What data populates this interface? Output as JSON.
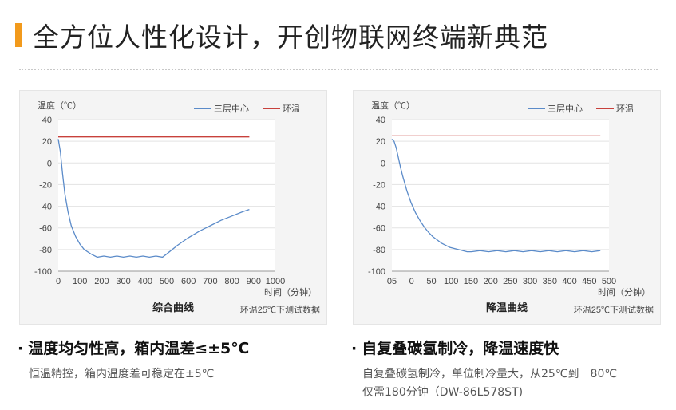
{
  "header": {
    "title": "全方位人性化设计，开创物联网终端新典范"
  },
  "chart_data": [
    {
      "type": "line",
      "title": "综合曲线",
      "note": "环温25℃下测试数据",
      "ylabel": "温度（℃）",
      "xlabel": "时间（分钟）",
      "xlim": [
        0,
        1000
      ],
      "ylim": [
        -100,
        40
      ],
      "xticks": [
        "0",
        "100",
        "200",
        "300",
        "400",
        "500",
        "600",
        "700",
        "800",
        "900",
        "1000"
      ],
      "yticks": [
        "40",
        "20",
        "0",
        "-20",
        "-40",
        "-60",
        "-80",
        "-100"
      ],
      "legend_position": "top-right",
      "series": [
        {
          "name": "三层中心",
          "color": "#5b8bc9",
          "x": [
            0,
            10,
            20,
            30,
            45,
            60,
            80,
            100,
            120,
            150,
            180,
            210,
            240,
            270,
            300,
            330,
            360,
            390,
            420,
            450,
            480,
            500,
            550,
            600,
            650,
            700,
            750,
            800,
            850,
            880
          ],
          "y": [
            22,
            10,
            -10,
            -28,
            -45,
            -58,
            -68,
            -75,
            -80,
            -84,
            -87,
            -86,
            -87,
            -86,
            -87,
            -86,
            -87,
            -86,
            -87,
            -86,
            -87,
            -84,
            -76,
            -69,
            -63,
            -58,
            -53,
            -49,
            -45,
            -43
          ]
        },
        {
          "name": "环温",
          "color": "#c8413c",
          "x": [
            0,
            880
          ],
          "y": [
            24,
            24
          ]
        }
      ]
    },
    {
      "type": "line",
      "title": "降温曲线",
      "note": "环温25℃下测试数据",
      "ylabel": "温度（℃）",
      "xlabel": "时间（分钟）",
      "xlim": [
        -5,
        500
      ],
      "ylim": [
        -100,
        40
      ],
      "xticks": [
        "05",
        "0",
        "50",
        "100",
        "150",
        "200",
        "250",
        "300",
        "350",
        "400",
        "450",
        "500"
      ],
      "yticks": [
        "40",
        "20",
        "0",
        "-20",
        "-40",
        "-60",
        "-80",
        "-100"
      ],
      "legend_position": "top-right",
      "series": [
        {
          "name": "三层中心",
          "color": "#5b8bc9",
          "x": [
            -5,
            0,
            5,
            10,
            15,
            20,
            30,
            40,
            50,
            60,
            70,
            80,
            90,
            100,
            110,
            120,
            130,
            140,
            150,
            160,
            170,
            180,
            200,
            220,
            240,
            260,
            280,
            300,
            320,
            340,
            360,
            380,
            400,
            420,
            440,
            460,
            480
          ],
          "y": [
            22,
            20,
            14,
            5,
            -4,
            -12,
            -26,
            -37,
            -46,
            -53,
            -59,
            -64,
            -68,
            -71,
            -74,
            -76,
            -78,
            -79,
            -80,
            -81,
            -82,
            -82,
            -81,
            -82,
            -81,
            -82,
            -81,
            -82,
            -81,
            -82,
            -81,
            -82,
            -81,
            -82,
            -81,
            -82,
            -81
          ]
        },
        {
          "name": "环温",
          "color": "#c8413c",
          "x": [
            -5,
            480
          ],
          "y": [
            25,
            25
          ]
        }
      ]
    }
  ],
  "features": [
    {
      "title": "温度均匀性高，箱内温差≤±5℃",
      "desc_lines": [
        "恒温精控，箱内温度差可稳定在±5℃"
      ]
    },
    {
      "title": "自复叠碳氢制冷，降温速度快",
      "desc_lines": [
        "自复叠碳氢制冷，单位制冷量大，从25℃到－80℃",
        "仅需180分钟（DW-86L578ST)"
      ]
    }
  ],
  "bullet": "·"
}
